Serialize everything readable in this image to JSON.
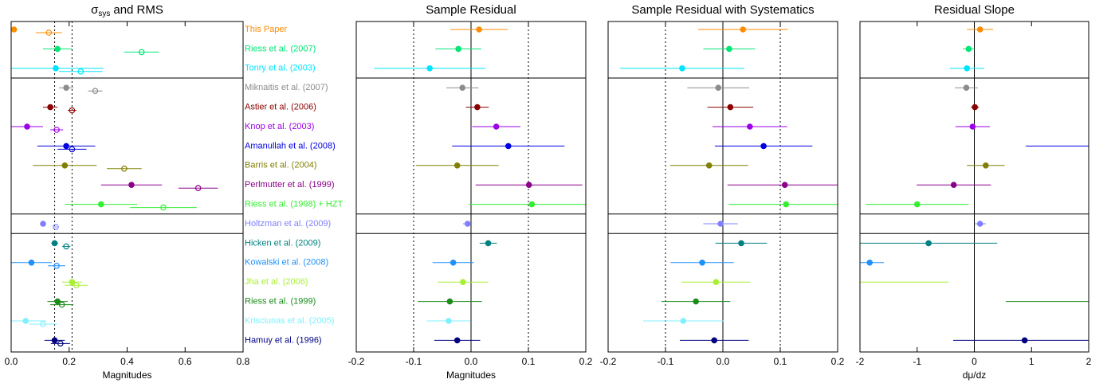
{
  "chart_data": [
    {
      "type": "errorbar",
      "title": "σ",
      "title_subscript": "sys",
      "title_suffix": "and RMS",
      "xlabel": "Magnitudes",
      "categories": [
        "This Paper",
        "Riess et al. (2007)",
        "Tonry et al. (2003)",
        "Miknaitis et al. (2007)",
        "Astier et al. (2006)",
        "Knop et al. (2003)",
        "Amanullah et al. (2008)",
        "Barris et al. (2004)",
        "Perlmutter et al. (1999)",
        "Riess et al. (1998) + HZT",
        "Holtzman et al. (2009)",
        "Hicken et al. (2009)",
        "Kowalski et al. (2008)",
        "Jha et al. (2006)",
        "Riess et al. (1999)",
        "Krisciunas et al. (2005)",
        "Hamuy et al. (1996)"
      ],
      "colors": [
        "#ff8c00",
        "#00e676",
        "#00e5ff",
        "#8c8c8c",
        "#8b0000",
        "#9b00e8",
        "#0000e0",
        "#808000",
        "#8b008b",
        "#33ee33",
        "#8080ff",
        "#008080",
        "#1e90ff",
        "#a8f032",
        "#1a8c1a",
        "#80f0ff",
        "#000080"
      ],
      "group_breaks": [
        3,
        10,
        11
      ],
      "series": [
        {
          "marker": "filled",
          "values": [
            0.01,
            0.16,
            0.154,
            0.19,
            0.135,
            0.055,
            0.19,
            0.185,
            0.415,
            0.31,
            0.11,
            0.15,
            0.07,
            0.21,
            0.16,
            0.05,
            0.15
          ],
          "errors": [
            0,
            0.05,
            0.165,
            0.025,
            0.025,
            0.055,
            0.1,
            0.11,
            0.105,
            0.125,
            0,
            0.012,
            0.07,
            0.035,
            0.035,
            0.07,
            0.035
          ]
        },
        {
          "marker": "open",
          "values": [
            0.13,
            0.45,
            0.24,
            0.29,
            0.21,
            0.157,
            0.21,
            0.39,
            0.645,
            0.525,
            0.154,
            0.19,
            0.157,
            0.225,
            0.175,
            0.11,
            0.17
          ],
          "errors": [
            0.045,
            0.06,
            0.075,
            0.025,
            0.015,
            0.022,
            0.05,
            0.06,
            0.068,
            0.115,
            0.005,
            0.014,
            0.03,
            0.04,
            0.04,
            0.048,
            0.033
          ]
        }
      ],
      "xlim": [
        0,
        0.8
      ],
      "xticks": [
        {
          "value": 0,
          "label": "0.0"
        },
        0.2,
        0.4,
        0.6,
        0.8
      ],
      "dotted_lines": [
        0.15,
        0.21
      ],
      "solid_lines": []
    },
    {
      "type": "errorbar",
      "title": "Sample Residual",
      "xlabel": "Magnitudes",
      "series": [
        {
          "marker": "filled",
          "values": [
            0.014,
            -0.022,
            -0.072,
            -0.015,
            0.011,
            0.044,
            0.065,
            -0.024,
            0.101,
            0.106,
            -0.006,
            0.03,
            -0.031,
            -0.014,
            -0.037,
            -0.039,
            -0.024
          ],
          "errors": [
            0.05,
            0.04,
            0.097,
            0.028,
            0.02,
            0.042,
            0.098,
            0.072,
            0.093,
            0.11,
            0.008,
            0.015,
            0.036,
            0.044,
            0.056,
            0.038,
            0.04
          ]
        }
      ],
      "xlim": [
        -0.2,
        0.2
      ],
      "xticks": [
        -0.2,
        -0.1,
        {
          "value": 0,
          "label": "0.0"
        },
        0.1,
        0.2
      ],
      "dotted_lines": [
        -0.1,
        0.1
      ],
      "solid_lines": [
        0
      ]
    },
    {
      "type": "errorbar",
      "title": "Sample Residual with Systematics",
      "series": [
        {
          "marker": "filled",
          "values": [
            0.035,
            0.011,
            -0.071,
            -0.008,
            0.013,
            0.047,
            0.071,
            -0.024,
            0.108,
            0.11,
            -0.004,
            0.032,
            -0.036,
            -0.012,
            -0.047,
            -0.069,
            -0.015
          ],
          "errors": [
            0.078,
            0.045,
            0.108,
            0.054,
            0.04,
            0.065,
            0.085,
            0.068,
            0.1,
            0.1,
            0.03,
            0.045,
            0.055,
            0.06,
            0.06,
            0.07,
            0.06
          ]
        }
      ],
      "xlim": [
        -0.2,
        0.2
      ],
      "xticks": [
        -0.2,
        -0.1,
        {
          "value": 0,
          "label": "0.0"
        },
        0.1,
        0.2
      ],
      "dotted_lines": [
        -0.1,
        0.1
      ],
      "solid_lines": [
        0
      ]
    },
    {
      "type": "errorbar",
      "title": "Residual Slope",
      "xlabel": "dμ/dz",
      "series": [
        {
          "marker": "filled",
          "values": [
            0.1,
            -0.1,
            -0.13,
            -0.14,
            0.01,
            -0.03,
            3.0,
            0.2,
            -0.36,
            -1.0,
            0.1,
            -0.8,
            -1.83,
            -3.0,
            3.5,
            null,
            0.88
          ],
          "errors": [
            0.23,
            0.1,
            0.3,
            0.2,
            0.07,
            0.3,
            2.1,
            0.33,
            0.65,
            0.9,
            0.1,
            1.2,
            0.25,
            2.55,
            2.95,
            null,
            1.25
          ]
        }
      ],
      "xlim": [
        -2,
        2
      ],
      "xticks": [
        -2,
        -1,
        0,
        1,
        2
      ],
      "dotted_lines": [],
      "solid_lines": [
        0
      ]
    }
  ]
}
